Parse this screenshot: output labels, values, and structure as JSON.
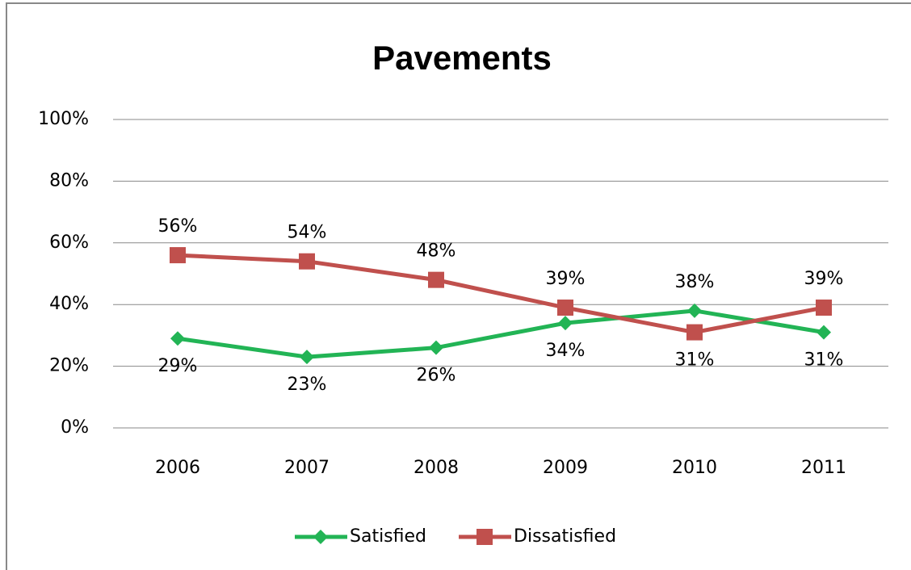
{
  "chart_data": {
    "type": "line",
    "title": "Pavements",
    "categories": [
      "2006",
      "2007",
      "2008",
      "2009",
      "2010",
      "2011"
    ],
    "series": [
      {
        "name": "Satisfied",
        "color": "#22b455",
        "marker": "diamond",
        "values": [
          29,
          23,
          26,
          34,
          38,
          31
        ],
        "value_labels": [
          "29%",
          "23%",
          "26%",
          "34%",
          "38%",
          "31%"
        ]
      },
      {
        "name": "Dissatisfied",
        "color": "#c0504d",
        "marker": "square",
        "values": [
          56,
          54,
          48,
          39,
          31,
          39
        ],
        "value_labels": [
          "56%",
          "54%",
          "48%",
          "39%",
          "31%",
          "39%"
        ]
      }
    ],
    "ylim": [
      0,
      100
    ],
    "yticks": [
      {
        "value": 0,
        "label": "0%"
      },
      {
        "value": 20,
        "label": "20%"
      },
      {
        "value": 40,
        "label": "40%"
      },
      {
        "value": 60,
        "label": "60%"
      },
      {
        "value": 80,
        "label": "80%"
      },
      {
        "value": 100,
        "label": "100%"
      }
    ],
    "grid": true,
    "legend": "bottom"
  }
}
